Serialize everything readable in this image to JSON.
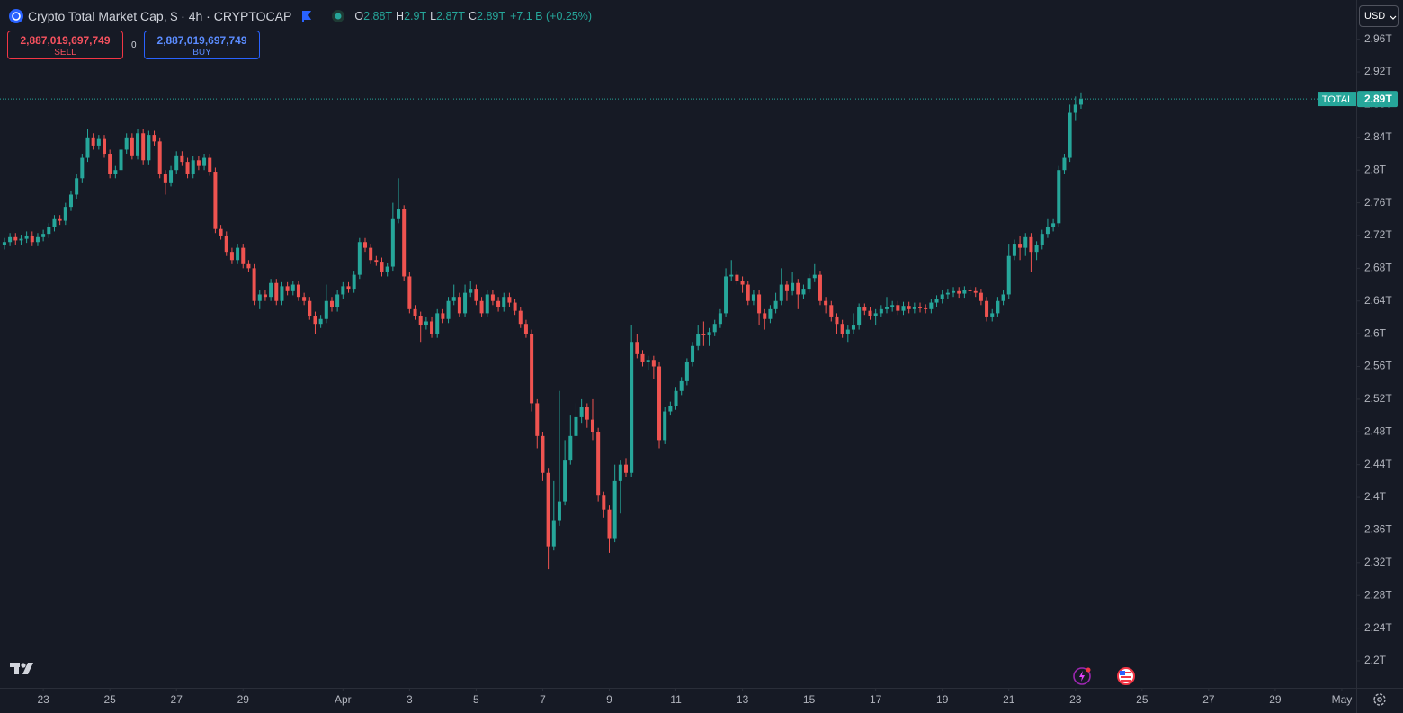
{
  "header": {
    "title": "Crypto Total Market Cap, $ · 4h · CRYPTOCAP",
    "ohlc": [
      {
        "key": "O",
        "value": "2.88T"
      },
      {
        "key": "H",
        "value": "2.9T"
      },
      {
        "key": "L",
        "value": "2.87T"
      },
      {
        "key": "C",
        "value": "2.89T"
      }
    ],
    "change": "+7.1 B (+0.25%)"
  },
  "trade": {
    "sell_price": "2,887,019,697,749",
    "sell": "SELL",
    "spread": "0",
    "buy_price": "2,887,019,697,749",
    "buy": "BUY"
  },
  "currency": "USD",
  "chart_data": {
    "type": "candlestick",
    "up_color": "#26a69a",
    "down_color": "#ef5350",
    "grid": false,
    "ylim": [
      2.167,
      3.008
    ],
    "yticks": [
      {
        "value": 2.2,
        "label": "2.2T"
      },
      {
        "value": 2.24,
        "label": "2.24T"
      },
      {
        "value": 2.28,
        "label": "2.28T"
      },
      {
        "value": 2.32,
        "label": "2.32T"
      },
      {
        "value": 2.36,
        "label": "2.36T"
      },
      {
        "value": 2.4,
        "label": "2.4T"
      },
      {
        "value": 2.44,
        "label": "2.44T"
      },
      {
        "value": 2.48,
        "label": "2.48T"
      },
      {
        "value": 2.52,
        "label": "2.52T"
      },
      {
        "value": 2.56,
        "label": "2.56T"
      },
      {
        "value": 2.6,
        "label": "2.6T"
      },
      {
        "value": 2.64,
        "label": "2.64T"
      },
      {
        "value": 2.68,
        "label": "2.68T"
      },
      {
        "value": 2.72,
        "label": "2.72T"
      },
      {
        "value": 2.76,
        "label": "2.76T"
      },
      {
        "value": 2.8,
        "label": "2.8T"
      },
      {
        "value": 2.84,
        "label": "2.84T"
      },
      {
        "value": 2.88,
        "label": "2.88T"
      },
      {
        "value": 2.92,
        "label": "2.92T"
      },
      {
        "value": 2.96,
        "label": "2.96T"
      }
    ],
    "xlim": [
      -0.8,
      243.6
    ],
    "xticks": [
      {
        "value": 7,
        "label": "23"
      },
      {
        "value": 19,
        "label": "25"
      },
      {
        "value": 31,
        "label": "27"
      },
      {
        "value": 43,
        "label": "29"
      },
      {
        "value": 61,
        "label": "Apr"
      },
      {
        "value": 73,
        "label": "3"
      },
      {
        "value": 85,
        "label": "5"
      },
      {
        "value": 97,
        "label": "7"
      },
      {
        "value": 109,
        "label": "9"
      },
      {
        "value": 121,
        "label": "11"
      },
      {
        "value": 133,
        "label": "13"
      },
      {
        "value": 145,
        "label": "15"
      },
      {
        "value": 157,
        "label": "17"
      },
      {
        "value": 169,
        "label": "19"
      },
      {
        "value": 181,
        "label": "21"
      },
      {
        "value": 193,
        "label": "23"
      },
      {
        "value": 205,
        "label": "25"
      },
      {
        "value": 217,
        "label": "27"
      },
      {
        "value": 229,
        "label": "29"
      },
      {
        "value": 241,
        "label": "May"
      }
    ],
    "price_tag": {
      "name": "TOTAL",
      "label": "2.89T",
      "color": "#26a69a"
    },
    "open": [
      2.708,
      2.712,
      2.718,
      2.714,
      2.716,
      2.72,
      2.712,
      2.718,
      2.722,
      2.73,
      2.74,
      2.738,
      2.755,
      2.77,
      2.79,
      2.815,
      2.84,
      2.83,
      2.838,
      2.82,
      2.795,
      2.8,
      2.825,
      2.84,
      2.818,
      2.845,
      2.812,
      2.843,
      2.835,
      2.795,
      2.785,
      2.8,
      2.818,
      2.81,
      2.795,
      2.812,
      2.805,
      2.815,
      2.798,
      2.728,
      2.72,
      2.7,
      2.69,
      2.705,
      2.685,
      2.68,
      2.64,
      2.648,
      2.645,
      2.662,
      2.64,
      2.658,
      2.652,
      2.66,
      2.645,
      2.64,
      2.622,
      2.612,
      2.618,
      2.64,
      2.632,
      2.648,
      2.658,
      2.655,
      2.672,
      2.712,
      2.705,
      2.69,
      2.688,
      2.675,
      2.682,
      2.74,
      2.752,
      2.67,
      2.63,
      2.622,
      2.61,
      2.615,
      2.6,
      2.625,
      2.618,
      2.64,
      2.645,
      2.625,
      2.65,
      2.655,
      2.64,
      2.625,
      2.648,
      2.64,
      2.632,
      2.645,
      2.638,
      2.628,
      2.612,
      2.6,
      2.515,
      2.475,
      2.43,
      2.34,
      2.372,
      2.395,
      2.445,
      2.475,
      2.498,
      2.51,
      2.495,
      2.48,
      2.402,
      2.385,
      2.35,
      2.42,
      2.44,
      2.43,
      2.59,
      2.575,
      2.565,
      2.568,
      2.56,
      2.47,
      2.505,
      2.512,
      2.53,
      2.542,
      2.565,
      2.585,
      2.6,
      2.598,
      2.602,
      2.612,
      2.625,
      2.67,
      2.672,
      2.665,
      2.66,
      2.64,
      2.648,
      2.625,
      2.618,
      2.63,
      2.64,
      2.66,
      2.652,
      2.662,
      2.648,
      2.655,
      2.668,
      2.672,
      2.64,
      2.635,
      2.62,
      2.612,
      2.6,
      2.605,
      2.61,
      2.632,
      2.628,
      2.622,
      2.625,
      2.63,
      2.632,
      2.635,
      2.628,
      2.634,
      2.63,
      2.633,
      2.631,
      2.63,
      2.638,
      2.642,
      2.648,
      2.65,
      2.652,
      2.649,
      2.653,
      2.652,
      2.65,
      2.64,
      2.62,
      2.625,
      2.64,
      2.648,
      2.695,
      2.71,
      2.705,
      2.718,
      2.7,
      2.708,
      2.722,
      2.73,
      2.735,
      2.8,
      2.815,
      2.87,
      2.88
    ],
    "high": [
      2.717,
      2.723,
      2.723,
      2.721,
      2.725,
      2.725,
      2.723,
      2.727,
      2.735,
      2.745,
      2.745,
      2.76,
      2.775,
      2.795,
      2.82,
      2.85,
      2.845,
      2.843,
      2.843,
      2.825,
      2.805,
      2.83,
      2.845,
      2.845,
      2.85,
      2.85,
      2.848,
      2.848,
      2.84,
      2.8,
      2.805,
      2.823,
      2.823,
      2.815,
      2.817,
      2.817,
      2.82,
      2.82,
      2.803,
      2.733,
      2.725,
      2.705,
      2.71,
      2.71,
      2.69,
      2.685,
      2.653,
      2.653,
      2.667,
      2.667,
      2.663,
      2.663,
      2.665,
      2.665,
      2.65,
      2.645,
      2.627,
      2.623,
      2.66,
      2.645,
      2.653,
      2.663,
      2.663,
      2.677,
      2.717,
      2.717,
      2.71,
      2.695,
      2.693,
      2.687,
      2.76,
      2.79,
      2.757,
      2.675,
      2.635,
      2.627,
      2.62,
      2.62,
      2.63,
      2.63,
      2.645,
      2.66,
      2.65,
      2.66,
      2.665,
      2.66,
      2.645,
      2.653,
      2.653,
      2.645,
      2.65,
      2.65,
      2.643,
      2.633,
      2.617,
      2.605,
      2.52,
      2.48,
      2.435,
      2.42,
      2.53,
      2.47,
      2.5,
      2.515,
      2.52,
      2.515,
      2.52,
      2.485,
      2.407,
      2.39,
      2.44,
      2.445,
      2.448,
      2.61,
      2.6,
      2.58,
      2.573,
      2.573,
      2.565,
      2.51,
      2.517,
      2.535,
      2.547,
      2.57,
      2.59,
      2.61,
      2.615,
      2.607,
      2.617,
      2.63,
      2.68,
      2.69,
      2.677,
      2.67,
      2.665,
      2.653,
      2.653,
      2.63,
      2.635,
      2.65,
      2.68,
      2.665,
      2.675,
      2.667,
      2.66,
      2.673,
      2.685,
      2.677,
      2.645,
      2.64,
      2.625,
      2.617,
      2.61,
      2.625,
      2.637,
      2.637,
      2.633,
      2.63,
      2.635,
      2.645,
      2.64,
      2.64,
      2.639,
      2.639,
      2.638,
      2.638,
      2.636,
      2.643,
      2.647,
      2.653,
      2.655,
      2.657,
      2.657,
      2.658,
      2.658,
      2.657,
      2.655,
      2.645,
      2.63,
      2.645,
      2.653,
      2.71,
      2.715,
      2.72,
      2.723,
      2.723,
      2.713,
      2.727,
      2.74,
      2.74,
      2.805,
      2.82,
      2.88,
      2.89,
      2.895
    ],
    "low": [
      2.703,
      2.707,
      2.709,
      2.709,
      2.711,
      2.707,
      2.707,
      2.713,
      2.717,
      2.725,
      2.733,
      2.733,
      2.75,
      2.765,
      2.785,
      2.81,
      2.825,
      2.825,
      2.815,
      2.79,
      2.79,
      2.795,
      2.82,
      2.813,
      2.813,
      2.807,
      2.807,
      2.83,
      2.79,
      2.77,
      2.78,
      2.795,
      2.805,
      2.79,
      2.79,
      2.8,
      2.8,
      2.793,
      2.723,
      2.715,
      2.695,
      2.685,
      2.685,
      2.68,
      2.675,
      2.635,
      2.63,
      2.64,
      2.64,
      2.635,
      2.635,
      2.647,
      2.647,
      2.64,
      2.635,
      2.617,
      2.6,
      2.607,
      2.613,
      2.627,
      2.627,
      2.643,
      2.65,
      2.65,
      2.667,
      2.7,
      2.685,
      2.683,
      2.67,
      2.67,
      2.677,
      2.735,
      2.665,
      2.625,
      2.617,
      2.59,
      2.605,
      2.595,
      2.595,
      2.613,
      2.613,
      2.635,
      2.62,
      2.62,
      2.645,
      2.635,
      2.62,
      2.62,
      2.635,
      2.627,
      2.627,
      2.633,
      2.623,
      2.607,
      2.595,
      2.505,
      2.46,
      2.42,
      2.312,
      2.335,
      2.365,
      2.39,
      2.44,
      2.47,
      2.49,
      2.485,
      2.47,
      2.395,
      2.375,
      2.332,
      2.345,
      2.38,
      2.425,
      2.425,
      2.57,
      2.56,
      2.555,
      2.545,
      2.46,
      2.465,
      2.5,
      2.507,
      2.525,
      2.537,
      2.56,
      2.58,
      2.585,
      2.585,
      2.597,
      2.607,
      2.62,
      2.665,
      2.66,
      2.65,
      2.635,
      2.635,
      2.61,
      2.605,
      2.613,
      2.625,
      2.635,
      2.64,
      2.647,
      2.63,
      2.643,
      2.65,
      2.663,
      2.635,
      2.625,
      2.615,
      2.6,
      2.595,
      2.59,
      2.6,
      2.605,
      2.623,
      2.617,
      2.61,
      2.62,
      2.625,
      2.627,
      2.623,
      2.623,
      2.625,
      2.625,
      2.626,
      2.625,
      2.625,
      2.633,
      2.637,
      2.643,
      2.645,
      2.644,
      2.644,
      2.647,
      2.645,
      2.635,
      2.615,
      2.615,
      2.62,
      2.635,
      2.643,
      2.69,
      2.69,
      2.695,
      2.675,
      2.69,
      2.703,
      2.717,
      2.725,
      2.73,
      2.795,
      2.81,
      2.86,
      2.875
    ],
    "close": [
      2.712,
      2.718,
      2.714,
      2.716,
      2.72,
      2.712,
      2.718,
      2.722,
      2.73,
      2.74,
      2.738,
      2.755,
      2.77,
      2.79,
      2.815,
      2.84,
      2.83,
      2.838,
      2.82,
      2.795,
      2.8,
      2.825,
      2.84,
      2.818,
      2.845,
      2.812,
      2.843,
      2.835,
      2.795,
      2.785,
      2.8,
      2.818,
      2.81,
      2.795,
      2.812,
      2.805,
      2.815,
      2.798,
      2.728,
      2.72,
      2.7,
      2.69,
      2.705,
      2.685,
      2.68,
      2.64,
      2.648,
      2.645,
      2.662,
      2.64,
      2.658,
      2.652,
      2.66,
      2.645,
      2.64,
      2.622,
      2.612,
      2.618,
      2.64,
      2.632,
      2.648,
      2.658,
      2.655,
      2.672,
      2.712,
      2.705,
      2.69,
      2.688,
      2.675,
      2.682,
      2.74,
      2.752,
      2.67,
      2.63,
      2.622,
      2.61,
      2.615,
      2.6,
      2.625,
      2.618,
      2.64,
      2.645,
      2.625,
      2.65,
      2.655,
      2.64,
      2.625,
      2.648,
      2.64,
      2.632,
      2.645,
      2.638,
      2.628,
      2.612,
      2.6,
      2.515,
      2.475,
      2.43,
      2.34,
      2.372,
      2.395,
      2.445,
      2.475,
      2.498,
      2.51,
      2.495,
      2.48,
      2.402,
      2.385,
      2.35,
      2.42,
      2.44,
      2.43,
      2.59,
      2.575,
      2.565,
      2.568,
      2.56,
      2.47,
      2.505,
      2.512,
      2.53,
      2.542,
      2.565,
      2.585,
      2.6,
      2.598,
      2.602,
      2.612,
      2.625,
      2.67,
      2.672,
      2.665,
      2.66,
      2.64,
      2.648,
      2.625,
      2.618,
      2.63,
      2.64,
      2.66,
      2.652,
      2.662,
      2.648,
      2.655,
      2.668,
      2.672,
      2.64,
      2.635,
      2.62,
      2.612,
      2.6,
      2.605,
      2.61,
      2.632,
      2.628,
      2.622,
      2.625,
      2.63,
      2.632,
      2.635,
      2.628,
      2.634,
      2.63,
      2.633,
      2.631,
      2.63,
      2.638,
      2.642,
      2.648,
      2.65,
      2.652,
      2.649,
      2.653,
      2.652,
      2.65,
      2.64,
      2.62,
      2.625,
      2.64,
      2.648,
      2.695,
      2.71,
      2.705,
      2.718,
      2.7,
      2.708,
      2.722,
      2.73,
      2.735,
      2.8,
      2.815,
      2.87,
      2.88,
      2.887
    ]
  }
}
